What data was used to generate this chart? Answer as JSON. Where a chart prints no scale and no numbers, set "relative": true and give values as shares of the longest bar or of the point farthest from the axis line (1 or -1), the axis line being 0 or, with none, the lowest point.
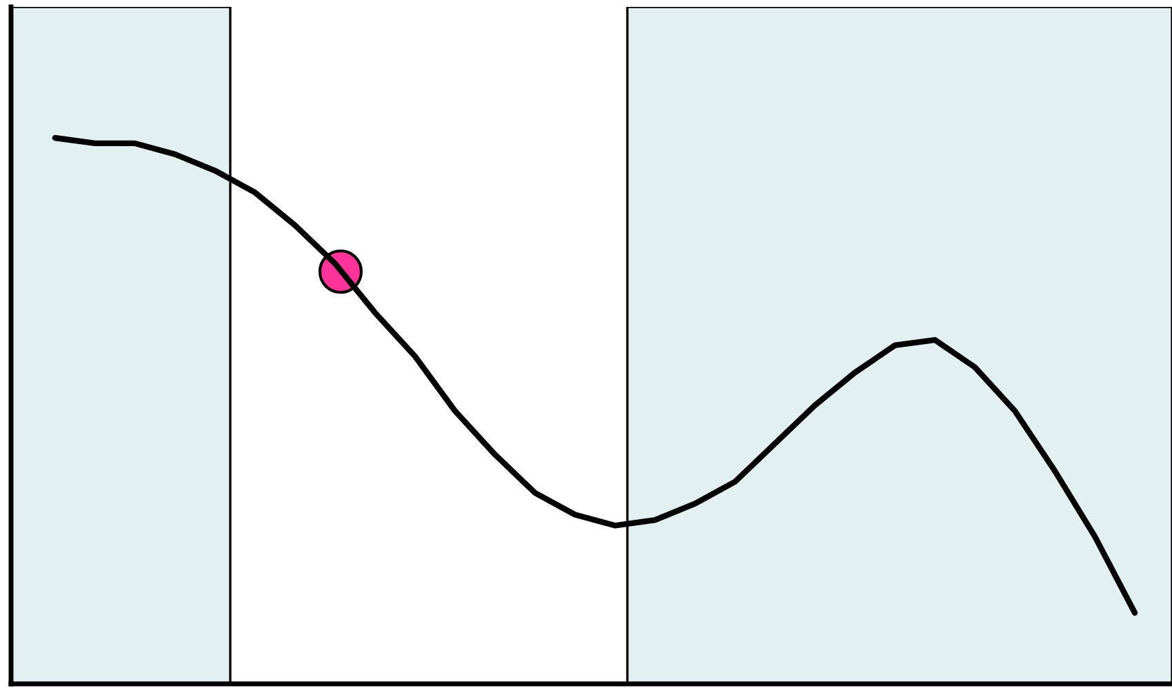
{
  "chart_data": {
    "type": "line",
    "relative": true,
    "categories": [
      null,
      null,
      null,
      null,
      null,
      null,
      null,
      null,
      null,
      null,
      null,
      null,
      null,
      null,
      null,
      null,
      null,
      null,
      null,
      null,
      null,
      null,
      null,
      null,
      null,
      null,
      null,
      null
    ],
    "series": [
      {
        "color": "#000000",
        "values": [
          1.0,
          0.99,
          0.99,
          0.97,
          0.94,
          0.9,
          0.84,
          0.77,
          0.68,
          0.6,
          0.5,
          0.42,
          0.35,
          0.31,
          0.29,
          0.3,
          0.33,
          0.37,
          0.44,
          0.51,
          0.57,
          0.62,
          0.63,
          0.58,
          0.5,
          0.39,
          0.27,
          0.13
        ]
      }
    ]
  }
}
